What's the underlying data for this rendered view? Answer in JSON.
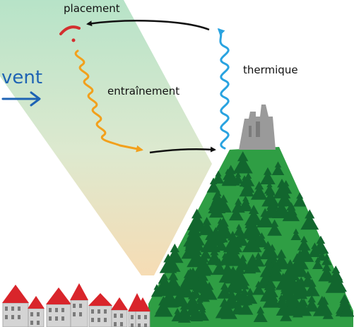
{
  "labels": {
    "placement": "placement",
    "wind": "vent",
    "entrainment": "entraînement",
    "thermal": "thermique"
  },
  "colors": {
    "wind": "#1e63b4",
    "thermal": "#29a3e0",
    "entrainment": "#f2a01c",
    "placement": "#d32f2f",
    "cycle_arrow": "#111111",
    "mountain": "#2f9e44",
    "forest": "#12662e",
    "castle": "#9a9a9a",
    "roofs": "#d9252b",
    "houses": "#d4d4d4",
    "band_top": "#b7e3c8",
    "band_bottom": "#f6dcb4"
  }
}
